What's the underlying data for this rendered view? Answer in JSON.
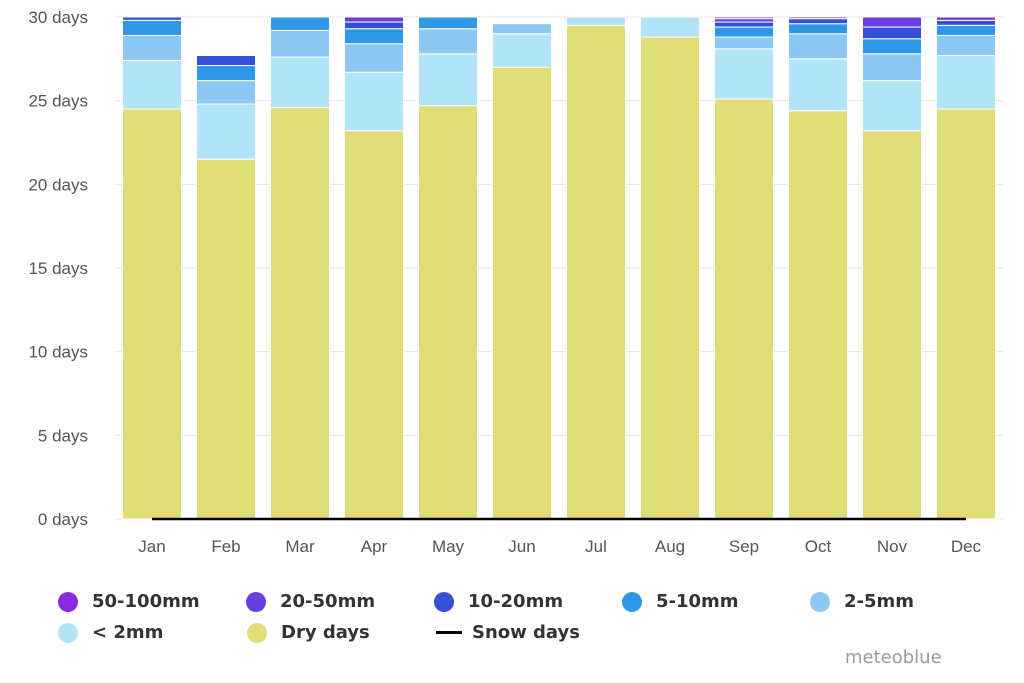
{
  "chart_data": {
    "type": "bar",
    "stacked": true,
    "categories": [
      "Jan",
      "Feb",
      "Mar",
      "Apr",
      "May",
      "Jun",
      "Jul",
      "Aug",
      "Sep",
      "Oct",
      "Nov",
      "Dec"
    ],
    "ylim": [
      0,
      30
    ],
    "yticks": [
      0,
      5,
      10,
      15,
      20,
      25,
      30
    ],
    "ytick_labels": [
      "0 days",
      "5 days",
      "10 days",
      "15 days",
      "20 days",
      "25 days",
      "30 days"
    ],
    "grid": true,
    "legend_position": "bottom",
    "series": [
      {
        "name": "Dry days",
        "color": "#e1dd76",
        "values": [
          24.5,
          21.5,
          24.6,
          23.2,
          24.7,
          27.0,
          29.5,
          28.8,
          25.1,
          24.4,
          23.2,
          24.5
        ]
      },
      {
        "name": "< 2mm",
        "color": "#b2e4f7",
        "values": [
          2.9,
          3.3,
          3.0,
          3.5,
          3.1,
          2.0,
          0.5,
          1.2,
          3.0,
          3.1,
          3.0,
          3.2
        ]
      },
      {
        "name": "2-5mm",
        "color": "#8dc8f2",
        "values": [
          1.5,
          1.4,
          1.6,
          1.7,
          1.5,
          0.6,
          0.0,
          0.0,
          0.7,
          1.5,
          1.6,
          1.2
        ]
      },
      {
        "name": "5-10mm",
        "color": "#2f98e6",
        "values": [
          0.9,
          0.9,
          0.8,
          0.9,
          0.7,
          0.0,
          0.0,
          0.0,
          0.6,
          0.6,
          0.9,
          0.6
        ]
      },
      {
        "name": "10-20mm",
        "color": "#3550d6",
        "values": [
          0.2,
          0.6,
          0.0,
          0.4,
          0.0,
          0.0,
          0.0,
          0.0,
          0.3,
          0.3,
          0.7,
          0.3
        ]
      },
      {
        "name": "20-50mm",
        "color": "#6b3ce0",
        "values": [
          0.0,
          0.0,
          0.0,
          0.3,
          0.0,
          0.0,
          0.0,
          0.0,
          0.2,
          0.1,
          0.6,
          0.2
        ]
      },
      {
        "name": "50-100mm",
        "color": "#8a2be2",
        "values": [
          0.0,
          0.0,
          0.0,
          0.0,
          0.0,
          0.0,
          0.0,
          0.0,
          0.1,
          0.0,
          0.0,
          0.0
        ]
      }
    ],
    "line_series": [
      {
        "name": "Snow days",
        "color": "#000000",
        "values": [
          0,
          0,
          0,
          0,
          0,
          0,
          0,
          0,
          0,
          0,
          0,
          0
        ]
      }
    ]
  },
  "legend": [
    {
      "label": "50-100mm",
      "color": "#8a2be2",
      "kind": "dot"
    },
    {
      "label": "20-50mm",
      "color": "#6b3ce0",
      "kind": "dot"
    },
    {
      "label": "10-20mm",
      "color": "#3550d6",
      "kind": "dot"
    },
    {
      "label": "5-10mm",
      "color": "#2f98e6",
      "kind": "dot"
    },
    {
      "label": "2-5mm",
      "color": "#8dc8f2",
      "kind": "dot"
    },
    {
      "label": "< 2mm",
      "color": "#b2e4f7",
      "kind": "dot"
    },
    {
      "label": "Dry days",
      "color": "#e1dd76",
      "kind": "dot"
    },
    {
      "label": "Snow days",
      "color": "#000000",
      "kind": "line"
    }
  ],
  "credit": "meteoblue"
}
